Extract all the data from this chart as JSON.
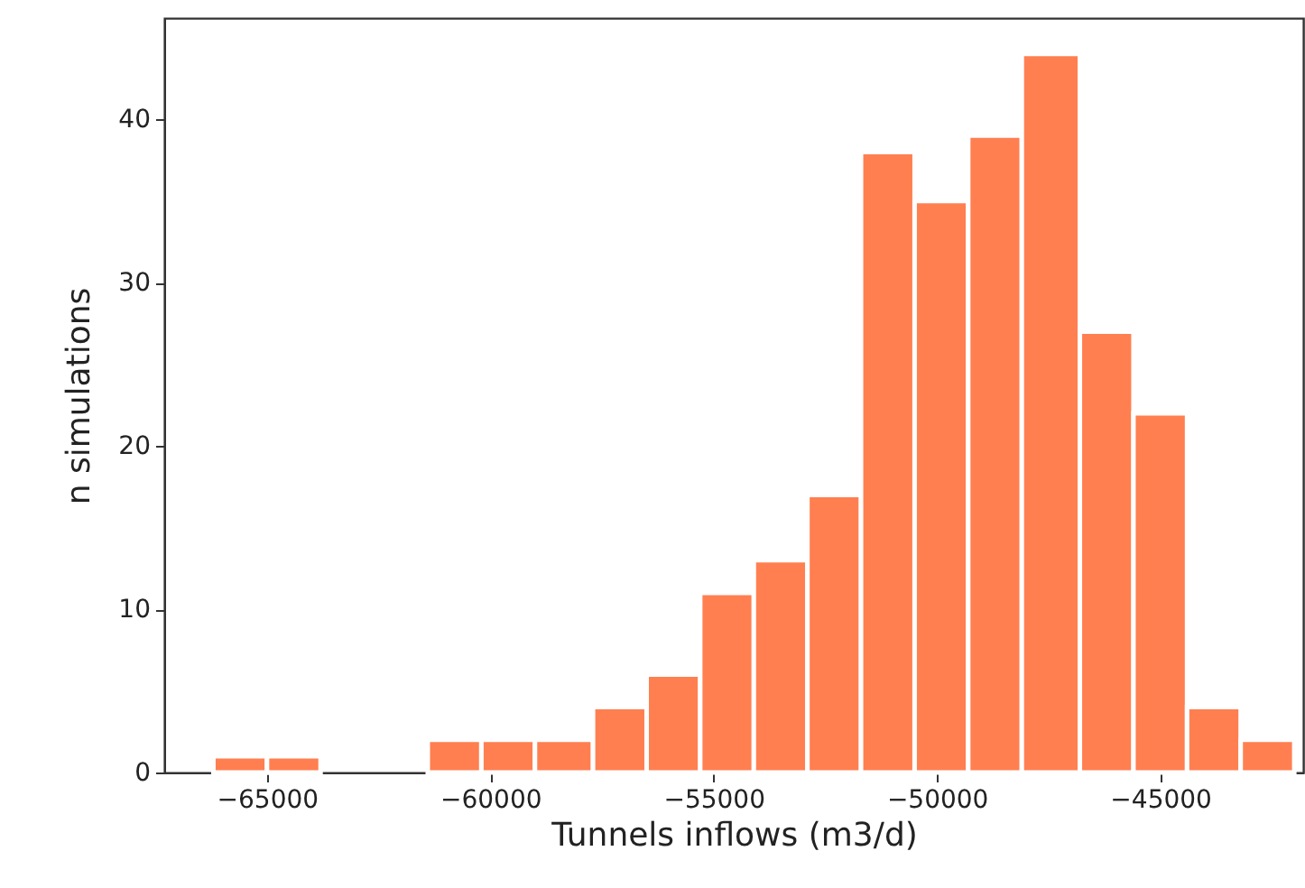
{
  "chart_data": {
    "type": "histogram",
    "xlabel": "Tunnels inflows (m3/d)",
    "ylabel": "n simulations",
    "bins": [
      -66200,
      -65000,
      -63800,
      -61400,
      -60200,
      -59000,
      -57700,
      -56500,
      -55300,
      -54100,
      -52900,
      -51700,
      -50500,
      -49300,
      -48100,
      -46800,
      -45600,
      -44400,
      -43200,
      -42000
    ],
    "values": [
      1,
      1,
      0,
      2,
      2,
      2,
      4,
      6,
      11,
      13,
      17,
      38,
      35,
      39,
      44,
      27,
      22,
      4,
      2
    ],
    "color": "#ff7f50",
    "xlim": [
      -67300,
      -41800
    ],
    "xticks": [
      -65000,
      -60000,
      -55000,
      -50000,
      -45000
    ],
    "ylim": [
      0,
      46.2
    ],
    "yticks": [
      0,
      10,
      20,
      30,
      40
    ]
  }
}
